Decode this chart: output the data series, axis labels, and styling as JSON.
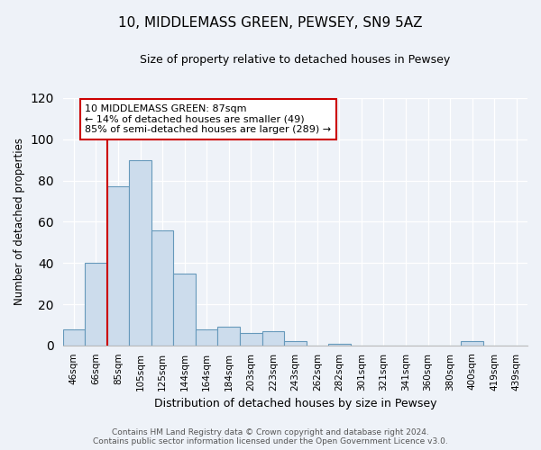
{
  "title": "10, MIDDLEMASS GREEN, PEWSEY, SN9 5AZ",
  "subtitle": "Size of property relative to detached houses in Pewsey",
  "xlabel": "Distribution of detached houses by size in Pewsey",
  "ylabel": "Number of detached properties",
  "bin_labels": [
    "46sqm",
    "66sqm",
    "85sqm",
    "105sqm",
    "125sqm",
    "144sqm",
    "164sqm",
    "184sqm",
    "203sqm",
    "223sqm",
    "243sqm",
    "262sqm",
    "282sqm",
    "301sqm",
    "321sqm",
    "341sqm",
    "360sqm",
    "380sqm",
    "400sqm",
    "419sqm",
    "439sqm"
  ],
  "bar_heights": [
    8,
    40,
    77,
    90,
    56,
    35,
    8,
    9,
    6,
    7,
    2,
    0,
    1,
    0,
    0,
    0,
    0,
    0,
    2,
    0,
    0
  ],
  "bar_color": "#ccdcec",
  "bar_edge_color": "#6699bb",
  "vline_color": "#cc0000",
  "vline_x_index": 2,
  "annotation_text": "10 MIDDLEMASS GREEN: 87sqm\n← 14% of detached houses are smaller (49)\n85% of semi-detached houses are larger (289) →",
  "annotation_box_facecolor": "#ffffff",
  "annotation_box_edgecolor": "#cc0000",
  "ylim": [
    0,
    120
  ],
  "yticks": [
    0,
    20,
    40,
    60,
    80,
    100,
    120
  ],
  "background_color": "#eef2f8",
  "grid_color": "#ffffff",
  "title_fontsize": 11,
  "subtitle_fontsize": 9,
  "ylabel_fontsize": 8.5,
  "xlabel_fontsize": 9,
  "tick_fontsize": 7.5,
  "annot_fontsize": 8,
  "footer_fontsize": 6.5,
  "footer_line1": "Contains HM Land Registry data © Crown copyright and database right 2024.",
  "footer_line2": "Contains public sector information licensed under the Open Government Licence v3.0."
}
